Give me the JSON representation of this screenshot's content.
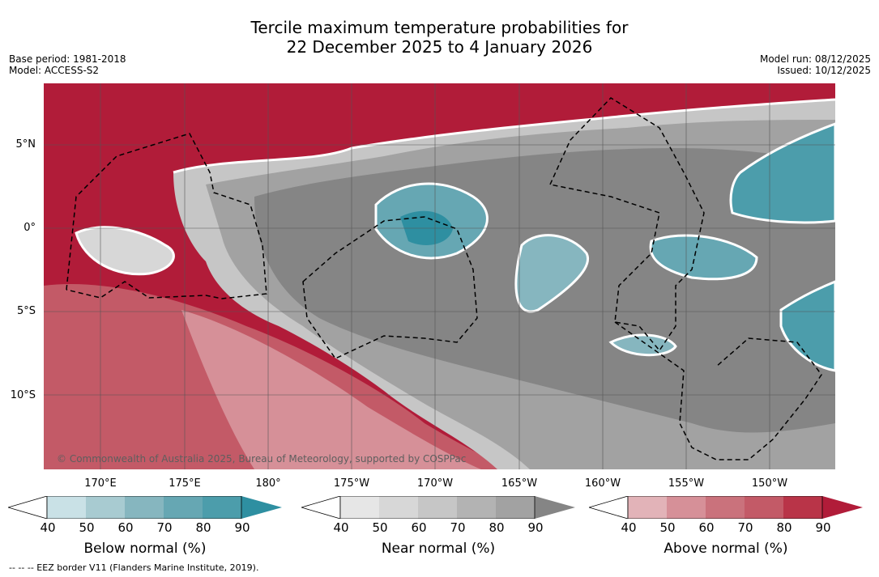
{
  "title": {
    "line1": "Tercile maximum temperature probabilities for",
    "line2": "22 December 2025 to 4 January 2026"
  },
  "meta": {
    "base_period": "Base period: 1981-2018",
    "model": "Model: ACCESS-S2",
    "model_run": "Model run: 08/12/2025",
    "issued": "Issued: 10/12/2025"
  },
  "axes": {
    "lat_labels": [
      "5°N",
      "0°",
      "5°S",
      "10°S"
    ],
    "lon_labels": [
      "170°E",
      "175°E",
      "180°",
      "175°W",
      "170°W",
      "165°W",
      "160°W",
      "155°W",
      "150°W"
    ]
  },
  "copyright": "© Commonwealth of Australia 2025, Bureau of Meteorology, supported by COSPPac",
  "colorbars": [
    {
      "title": "Below normal (%)",
      "ticks": [
        "40",
        "50",
        "60",
        "70",
        "80",
        "90"
      ],
      "colors": [
        "#c9e1e6",
        "#a8cbd1",
        "#86b6bf",
        "#66a7b3",
        "#4c9dab",
        "#2e8fa1"
      ]
    },
    {
      "title": "Near normal (%)",
      "ticks": [
        "40",
        "50",
        "60",
        "70",
        "80",
        "90"
      ],
      "colors": [
        "#e6e6e6",
        "#d7d7d7",
        "#c6c6c6",
        "#b3b3b3",
        "#a2a2a2",
        "#858585"
      ]
    },
    {
      "title": "Above normal (%)",
      "ticks": [
        "40",
        "50",
        "60",
        "70",
        "80",
        "90"
      ],
      "colors": [
        "#e2b3b8",
        "#d69098",
        "#ca727c",
        "#c35a67",
        "#b93448",
        "#b11c39"
      ]
    }
  ],
  "eez_note": "--  --  -- EEZ border V11 (Flanders Marine Institute, 2019)."
}
